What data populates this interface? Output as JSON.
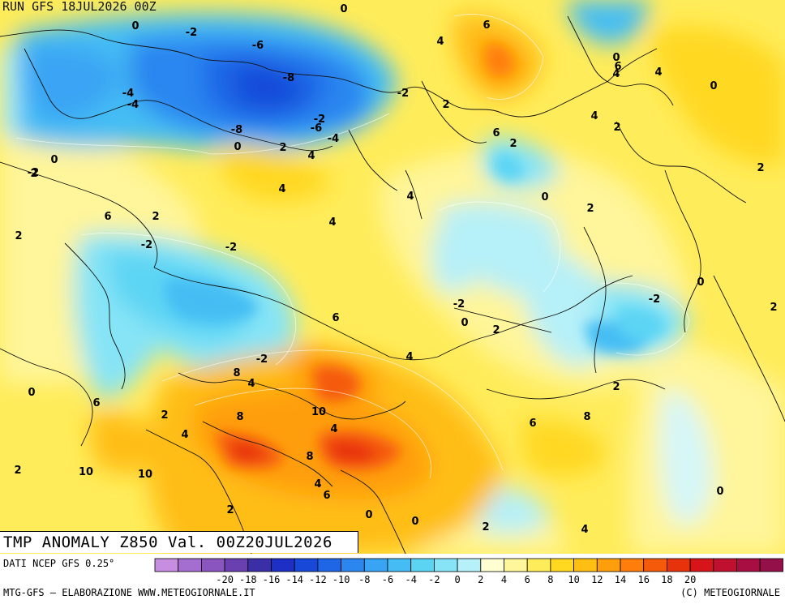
{
  "header": {
    "run_label": "RUN GFS 18JUL2026 00Z"
  },
  "title": {
    "text": "TMP ANOMALY Z850 Val. 00Z20JUL2026"
  },
  "footer": {
    "source": "DATI NCEP GFS 0.25°",
    "credit_left": "MTG-GFS – ELABORAZIONE WWW.METEOGIORNALE.IT",
    "credit_right": "(C) METEOGIORNALE"
  },
  "legend": {
    "colors": [
      "#c78de0",
      "#a46ed0",
      "#8a55bf",
      "#6a3fb0",
      "#3b2fa8",
      "#1e2fc6",
      "#1848d8",
      "#1f66e6",
      "#2b86f0",
      "#3aa4f4",
      "#45bdf4",
      "#5bd4f4",
      "#86e4f6",
      "#b6f0f8",
      "#ffffd2",
      "#fff59a",
      "#ffec5a",
      "#ffd820",
      "#ffbe12",
      "#ff9e0c",
      "#ff7d0a",
      "#f55a0a",
      "#e8320c",
      "#d6141a",
      "#c01030",
      "#a80e42",
      "#941048"
    ],
    "tick_labels": [
      "-20",
      "-18",
      "-16",
      "-14",
      "-12",
      "-10",
      "-8",
      "-6",
      "-4",
      "-2",
      "0",
      "2",
      "4",
      "6",
      "8",
      "10",
      "12",
      "14",
      "16",
      "18",
      "20"
    ]
  },
  "map": {
    "contour_labels": [
      "0",
      "-2",
      "-4",
      "-6",
      "-8",
      "-4",
      "-2",
      "-8",
      "-6",
      "-4",
      "-2",
      "0",
      "2",
      "4",
      "0",
      "4",
      "6",
      "2",
      "6",
      "2",
      "4",
      "2",
      "6",
      "4",
      "0",
      "2",
      "4",
      "4",
      "0",
      "-2",
      "2",
      "6",
      "2",
      "-2",
      "4",
      "2",
      "-2",
      "0",
      "0",
      "4",
      "6",
      "2",
      "-2",
      "0",
      "2",
      "0",
      "2",
      "-2",
      "8",
      "4",
      "6",
      "2",
      "4",
      "8",
      "10",
      "10",
      "10",
      "4",
      "8",
      "6",
      "8",
      "4",
      "6",
      "2",
      "0",
      "0",
      "2",
      "4",
      "0",
      "0",
      "2",
      "-2",
      "2",
      "4"
    ]
  }
}
